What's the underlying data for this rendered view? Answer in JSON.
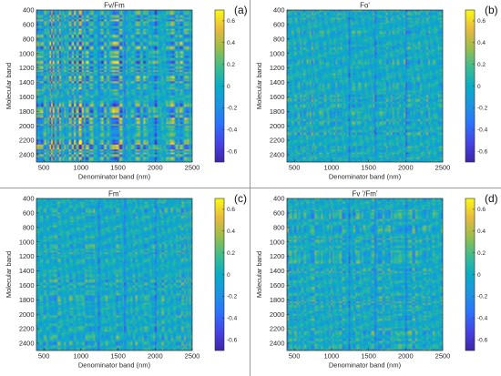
{
  "chart_data": [
    {
      "type": "heatmap",
      "title": "Fv/Fm",
      "panel_label": "(a)",
      "xlabel": "Denominator band (nm)",
      "ylabel": "Molecular band",
      "xlim": [
        400,
        2500
      ],
      "ylim": [
        400,
        2500
      ],
      "xticks": [
        500,
        1000,
        1500,
        2000,
        2500
      ],
      "yticks": [
        400,
        600,
        800,
        1000,
        1200,
        1400,
        1600,
        1800,
        2000,
        2200,
        2400
      ],
      "colorbar": {
        "range": [
          -0.7,
          0.7
        ],
        "ticks": [
          0.6,
          0.4,
          0.2,
          0,
          -0.2,
          -0.4,
          -0.6
        ]
      },
      "values": "dense band-by-band correlation matrix (dimension ~211 x 211, correlation coefficient r between -0.7 and 0.7); values not individually readable"
    },
    {
      "type": "heatmap",
      "title": "Fo'",
      "panel_label": "(b)",
      "xlabel": "Denominator band (nm)",
      "ylabel": "Molecular band",
      "xlim": [
        400,
        2500
      ],
      "ylim": [
        400,
        2500
      ],
      "xticks": [
        500,
        1000,
        1500,
        2000,
        2500
      ],
      "yticks": [
        400,
        600,
        800,
        1000,
        1200,
        1400,
        1600,
        1800,
        2000,
        2200,
        2400
      ],
      "colorbar": {
        "range": [
          -0.7,
          0.7
        ],
        "ticks": [
          0.6,
          0.4,
          0.2,
          0,
          -0.2,
          -0.4,
          -0.6
        ]
      },
      "values": "dense band-by-band correlation matrix; values not individually readable"
    },
    {
      "type": "heatmap",
      "title": "Fm'",
      "panel_label": "(c)",
      "xlabel": "Denominator band (nm)",
      "ylabel": "Molecular band",
      "xlim": [
        400,
        2500
      ],
      "ylim": [
        400,
        2500
      ],
      "xticks": [
        500,
        1000,
        1500,
        2000,
        2500
      ],
      "yticks": [
        400,
        600,
        800,
        1000,
        1200,
        1400,
        1600,
        1800,
        2000,
        2200,
        2400
      ],
      "colorbar": {
        "range": [
          -0.7,
          0.7
        ],
        "ticks": [
          0.6,
          0.4,
          0.2,
          0,
          -0.2,
          -0.4,
          -0.6
        ]
      },
      "values": "dense band-by-band correlation matrix; values not individually readable"
    },
    {
      "type": "heatmap",
      "title": "Fv '/Fm'",
      "panel_label": "(d)",
      "xlabel": "Denominator band (nm)",
      "ylabel": "Molecular band",
      "xlim": [
        400,
        2500
      ],
      "ylim": [
        400,
        2500
      ],
      "xticks": [
        500,
        1000,
        1500,
        2000,
        2500
      ],
      "yticks": [
        400,
        600,
        800,
        1000,
        1200,
        1400,
        1600,
        1800,
        2000,
        2200,
        2400
      ],
      "colorbar": {
        "range": [
          -0.7,
          0.7
        ],
        "ticks": [
          0.6,
          0.4,
          0.2,
          0,
          -0.2,
          -0.4,
          -0.6
        ]
      },
      "values": "dense band-by-band correlation matrix; values not individually readable"
    }
  ]
}
